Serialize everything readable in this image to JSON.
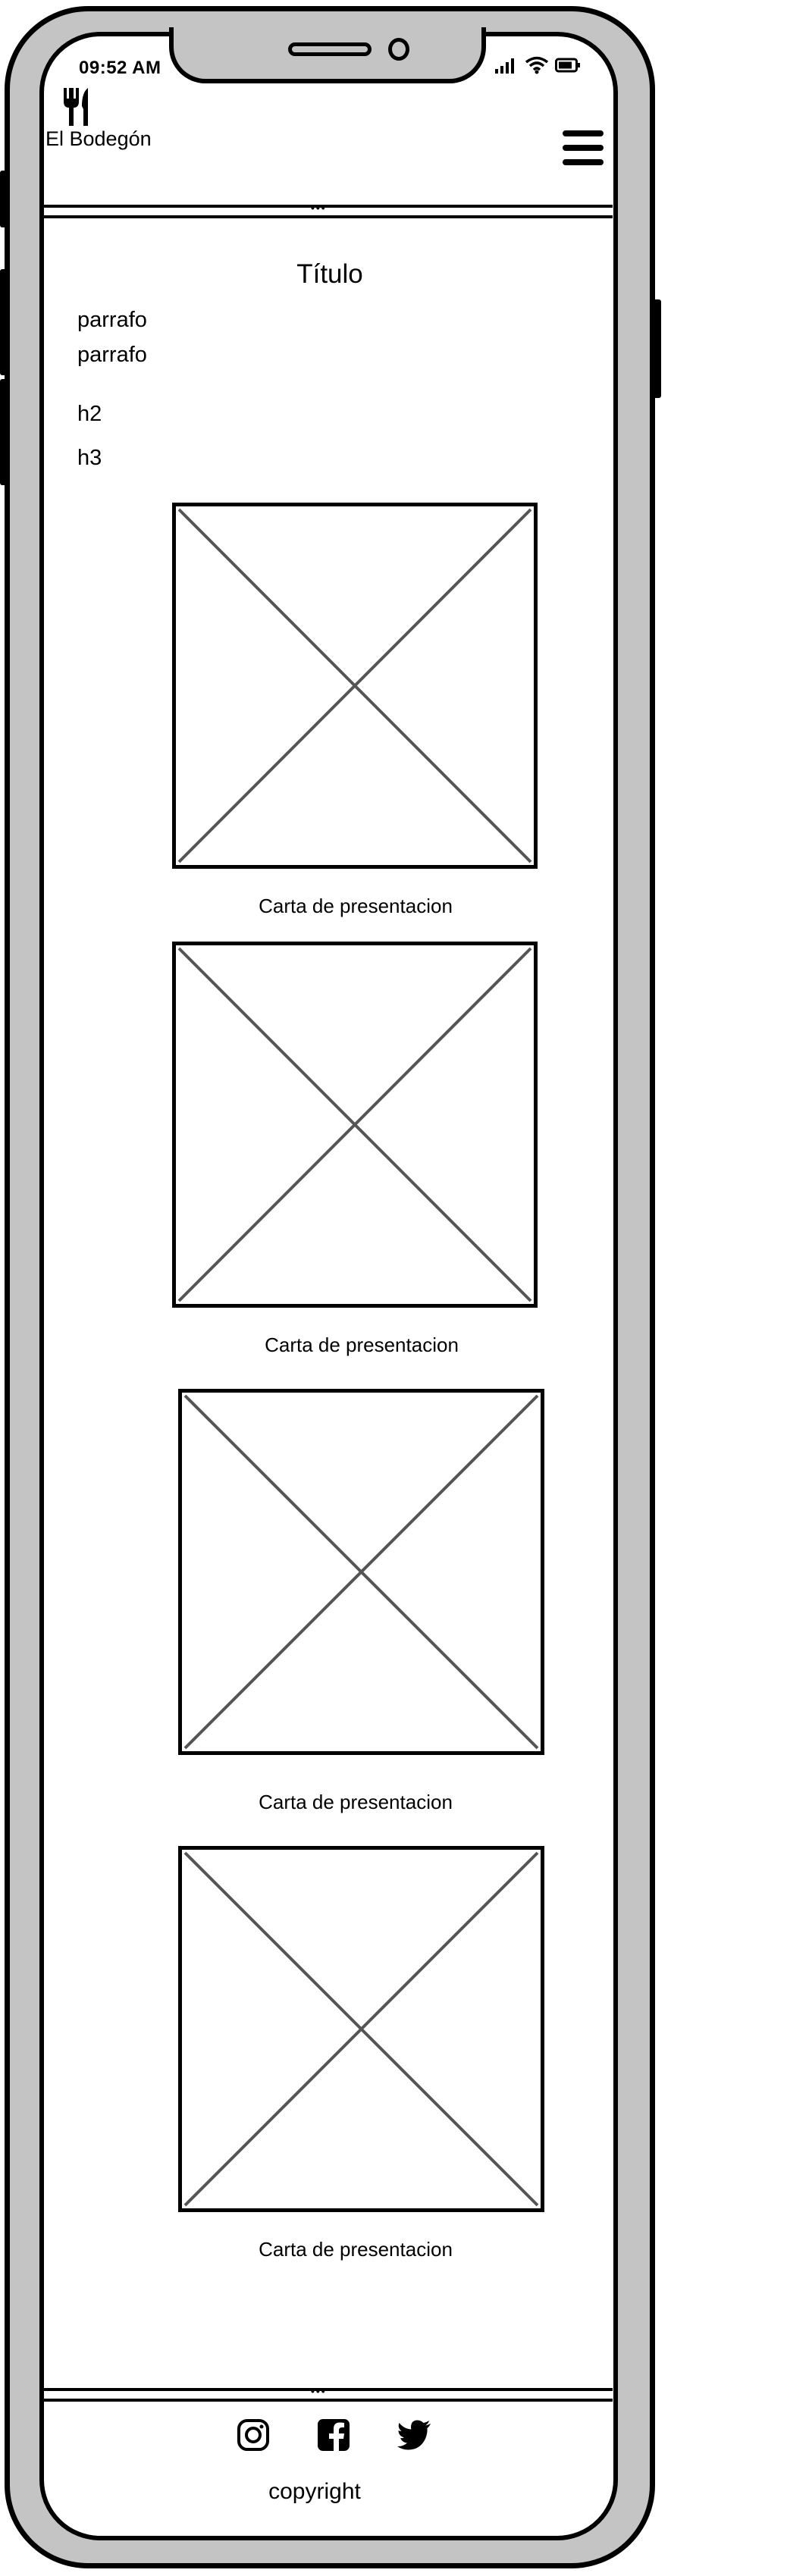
{
  "status_bar": {
    "time": "09:52 AM"
  },
  "header": {
    "brand": "El Bodegón",
    "logo_icon": "fork-knife-icon",
    "menu_icon": "hamburger-menu-icon"
  },
  "main": {
    "title": "Título",
    "paragraphs": [
      "parrafo",
      "parrafo"
    ],
    "h2": "h2",
    "h3": "h3",
    "cards": [
      {
        "caption": "Carta de presentacion"
      },
      {
        "caption": "Carta de presentacion"
      },
      {
        "caption": "Carta de presentacion"
      },
      {
        "caption": "Carta de presentacion"
      }
    ]
  },
  "footer": {
    "social_icons": [
      "instagram-icon",
      "facebook-icon",
      "twitter-icon"
    ],
    "copyright": "copyright"
  }
}
